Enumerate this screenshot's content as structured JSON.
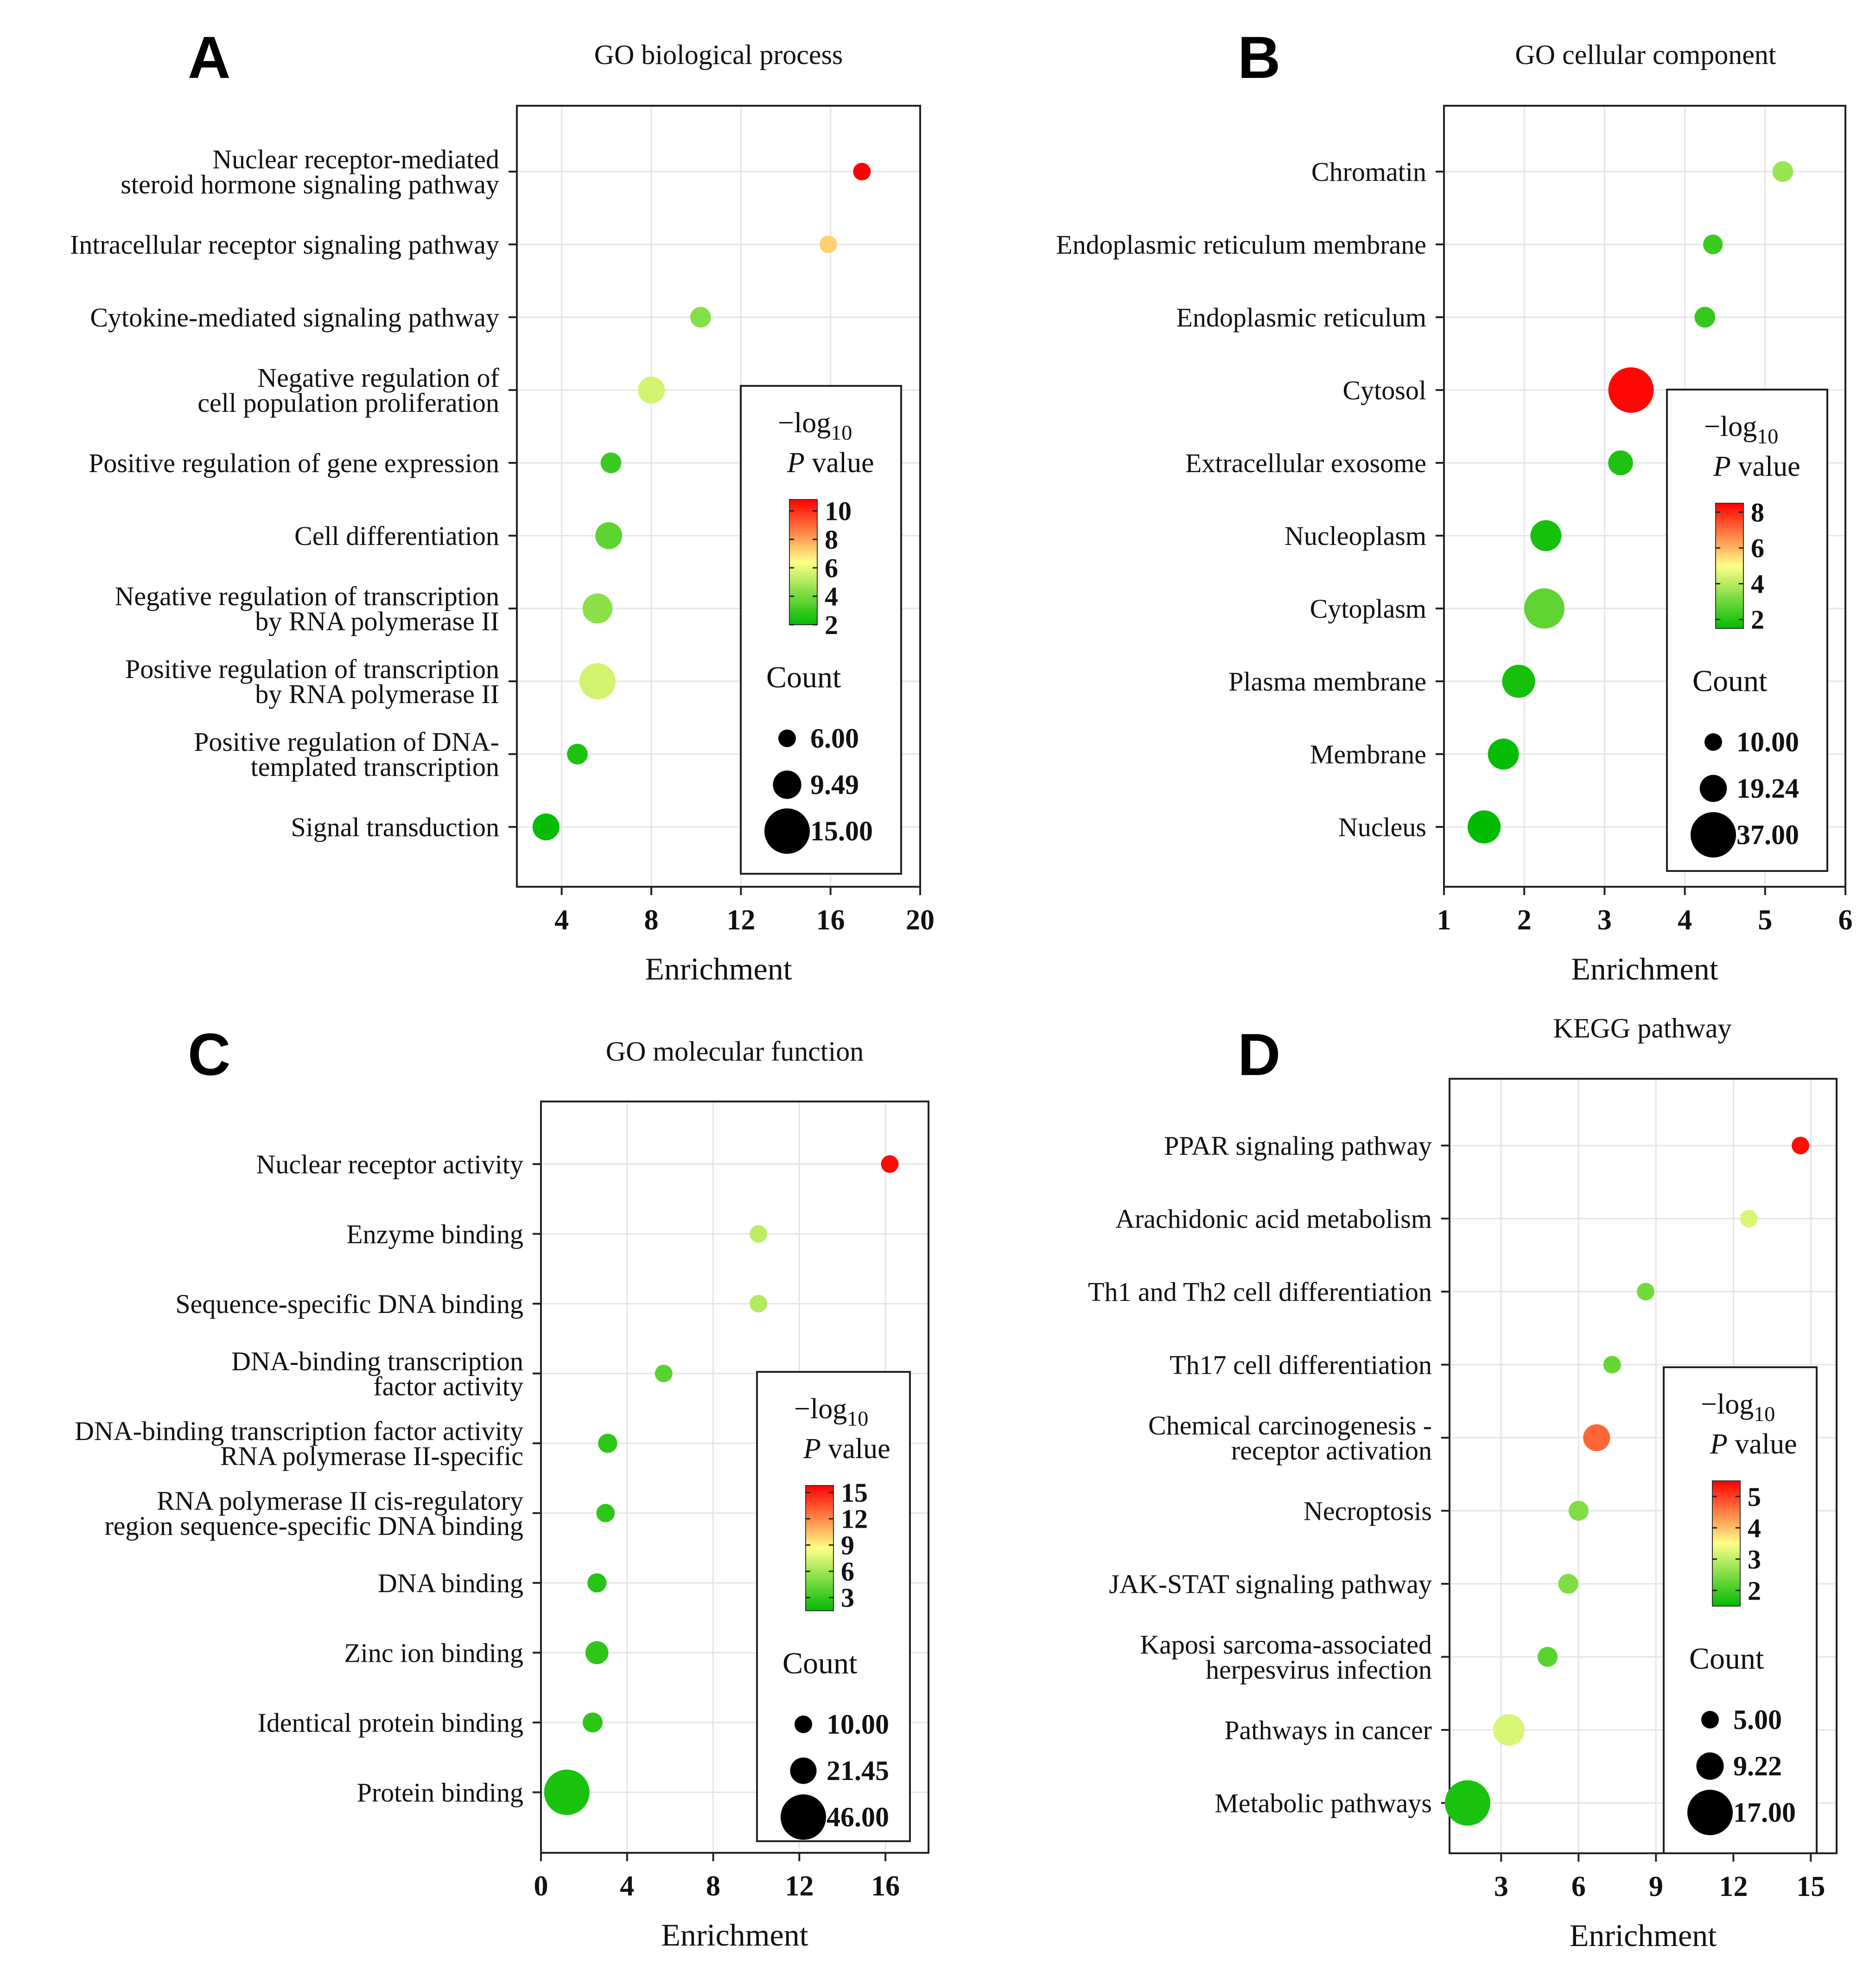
{
  "figure": {
    "colors": {
      "low": "#00bb00",
      "mid": "#ffff88",
      "high": "#ff0000",
      "axis": "#222222",
      "grid": "#e6e6e6"
    }
  },
  "chart_data": [
    {
      "panel_letter": "A",
      "type": "scatter",
      "title": "GO biological process",
      "xlabel": "Enrichment",
      "xlim": [
        2,
        20
      ],
      "xticks": [
        4,
        8,
        12,
        16,
        20
      ],
      "categories": [
        [
          "Nuclear receptor-mediated",
          "steroid hormone signaling pathway"
        ],
        [
          "Intracellular receptor signaling pathway"
        ],
        [
          "Cytokine-mediated signaling pathway"
        ],
        [
          "Negative regulation of",
          "cell population proliferation"
        ],
        [
          "Positive regulation of gene expression"
        ],
        [
          "Cell differentiation"
        ],
        [
          "Negative regulation of transcription",
          "by RNA polymerase II"
        ],
        [
          "Positive regulation of transcription",
          "by RNA polymerase II"
        ],
        [
          "Positive regulation of DNA-",
          "templated transcription"
        ],
        [
          "Signal transduction"
        ]
      ],
      "points": [
        {
          "enrichment": 17.4,
          "neglog10p": 10.8,
          "count": 6
        },
        {
          "enrichment": 15.9,
          "neglog10p": 7.2,
          "count": 6
        },
        {
          "enrichment": 10.2,
          "neglog10p": 4.3,
          "count": 7
        },
        {
          "enrichment": 8.0,
          "neglog10p": 5.6,
          "count": 9
        },
        {
          "enrichment": 6.2,
          "neglog10p": 3.0,
          "count": 7
        },
        {
          "enrichment": 6.1,
          "neglog10p": 3.6,
          "count": 9
        },
        {
          "enrichment": 5.6,
          "neglog10p": 4.4,
          "count": 10
        },
        {
          "enrichment": 5.6,
          "neglog10p": 5.6,
          "count": 12
        },
        {
          "enrichment": 4.7,
          "neglog10p": 2.5,
          "count": 7
        },
        {
          "enrichment": 3.3,
          "neglog10p": 2.1,
          "count": 9
        }
      ],
      "color_legend": {
        "title_prefix": "−log",
        "title_sub": "10",
        "title_p": "P",
        "title_value": "value",
        "ticks": [
          "10",
          "8",
          "6",
          "4",
          "2"
        ],
        "range": [
          2,
          10.8
        ]
      },
      "size_legend": {
        "title": "Count",
        "labels": [
          "6.00",
          "9.49",
          "15.00"
        ],
        "values": [
          6,
          9.49,
          15
        ]
      }
    },
    {
      "panel_letter": "B",
      "type": "scatter",
      "title": "GO cellular component",
      "xlabel": "Enrichment",
      "xlim": [
        1,
        6
      ],
      "xticks": [
        1,
        2,
        3,
        4,
        5,
        6
      ],
      "categories": [
        [
          "Chromatin"
        ],
        [
          "Endoplasmic reticulum membrane"
        ],
        [
          "Endoplasmic reticulum"
        ],
        [
          "Cytosol"
        ],
        [
          "Extracellular exosome"
        ],
        [
          "Nucleoplasm"
        ],
        [
          "Cytoplasm"
        ],
        [
          "Plasma membrane"
        ],
        [
          "Membrane"
        ],
        [
          "Nucleus"
        ]
      ],
      "points": [
        {
          "enrichment": 5.22,
          "neglog10p": 3.6,
          "count": 13
        },
        {
          "enrichment": 4.35,
          "neglog10p": 2.3,
          "count": 12
        },
        {
          "enrichment": 4.25,
          "neglog10p": 2.2,
          "count": 13
        },
        {
          "enrichment": 3.33,
          "neglog10p": 8.4,
          "count": 37
        },
        {
          "enrichment": 3.2,
          "neglog10p": 1.9,
          "count": 17
        },
        {
          "enrichment": 2.27,
          "neglog10p": 1.8,
          "count": 23
        },
        {
          "enrichment": 2.25,
          "neglog10p": 2.8,
          "count": 32
        },
        {
          "enrichment": 1.93,
          "neglog10p": 1.8,
          "count": 25
        },
        {
          "enrichment": 1.74,
          "neglog10p": 1.6,
          "count": 23
        },
        {
          "enrichment": 1.5,
          "neglog10p": 1.5,
          "count": 25
        }
      ],
      "color_legend": {
        "title_prefix": "−log",
        "title_sub": "10",
        "title_p": "P",
        "title_value": "value",
        "ticks": [
          "8",
          "6",
          "4",
          "2"
        ],
        "range": [
          1.5,
          8.5
        ]
      },
      "size_legend": {
        "title": "Count",
        "labels": [
          "10.00",
          "19.24",
          "37.00"
        ],
        "values": [
          10,
          19.24,
          37
        ]
      }
    },
    {
      "panel_letter": "C",
      "type": "scatter",
      "title": "GO molecular function",
      "xlabel": "Enrichment",
      "xlim": [
        0,
        18
      ],
      "xticks": [
        0,
        4,
        8,
        12,
        16
      ],
      "categories": [
        [
          "Nuclear receptor activity"
        ],
        [
          "Enzyme binding"
        ],
        [
          "Sequence-specific DNA binding"
        ],
        [
          "DNA-binding transcription",
          "factor activity"
        ],
        [
          "DNA-binding transcription factor activity",
          "RNA polymerase II-specific"
        ],
        [
          "RNA polymerase II cis-regulatory",
          "region sequence-specific DNA binding"
        ],
        [
          "DNA binding"
        ],
        [
          "Zinc ion binding"
        ],
        [
          "Identical protein binding"
        ],
        [
          "Protein binding"
        ]
      ],
      "points": [
        {
          "enrichment": 16.2,
          "neglog10p": 15.5,
          "count": 10
        },
        {
          "enrichment": 10.1,
          "neglog10p": 6.8,
          "count": 10
        },
        {
          "enrichment": 10.1,
          "neglog10p": 6.5,
          "count": 10
        },
        {
          "enrichment": 5.7,
          "neglog10p": 4.0,
          "count": 10
        },
        {
          "enrichment": 3.1,
          "neglog10p": 2.8,
          "count": 12
        },
        {
          "enrichment": 3.0,
          "neglog10p": 2.8,
          "count": 11
        },
        {
          "enrichment": 2.6,
          "neglog10p": 2.5,
          "count": 12
        },
        {
          "enrichment": 2.6,
          "neglog10p": 2.8,
          "count": 17
        },
        {
          "enrichment": 2.4,
          "neglog10p": 2.7,
          "count": 13
        },
        {
          "enrichment": 1.2,
          "neglog10p": 2.2,
          "count": 46
        }
      ],
      "color_legend": {
        "title_prefix": "−log",
        "title_sub": "10",
        "title_p": "P",
        "title_value": "value",
        "ticks": [
          "15",
          "12",
          "9",
          "6",
          "3"
        ],
        "range": [
          1.5,
          15.8
        ]
      },
      "size_legend": {
        "title": "Count",
        "labels": [
          "10.00",
          "21.45",
          "46.00"
        ],
        "values": [
          10,
          21.45,
          46
        ]
      }
    },
    {
      "panel_letter": "D",
      "type": "scatter",
      "title": "KEGG pathway",
      "xlabel": "Enrichment",
      "xlim": [
        1,
        16
      ],
      "xticks": [
        3,
        6,
        9,
        12,
        15
      ],
      "categories": [
        [
          "PPAR signaling pathway"
        ],
        [
          "Arachidonic acid metabolism"
        ],
        [
          "Th1 and Th2 cell differentiation"
        ],
        [
          "Th17 cell differentiation"
        ],
        [
          "Chemical carcinogenesis -",
          "receptor activation"
        ],
        [
          "Necroptosis"
        ],
        [
          "JAK-STAT signaling pathway"
        ],
        [
          "Kaposi sarcoma-associated",
          "herpesvirus infection"
        ],
        [
          "Pathways in cancer"
        ],
        [
          "Metabolic pathways"
        ]
      ],
      "points": [
        {
          "enrichment": 14.6,
          "neglog10p": 5.4,
          "count": 5
        },
        {
          "enrichment": 12.6,
          "neglog10p": 3.2,
          "count": 5
        },
        {
          "enrichment": 8.6,
          "neglog10p": 2.4,
          "count": 5
        },
        {
          "enrichment": 7.3,
          "neglog10p": 2.3,
          "count": 5
        },
        {
          "enrichment": 6.7,
          "neglog10p": 4.7,
          "count": 9
        },
        {
          "enrichment": 6.0,
          "neglog10p": 2.5,
          "count": 6
        },
        {
          "enrichment": 5.6,
          "neglog10p": 2.5,
          "count": 6
        },
        {
          "enrichment": 4.8,
          "neglog10p": 2.2,
          "count": 6
        },
        {
          "enrichment": 3.3,
          "neglog10p": 3.2,
          "count": 11
        },
        {
          "enrichment": 1.7,
          "neglog10p": 1.7,
          "count": 17
        }
      ],
      "color_legend": {
        "title_prefix": "−log",
        "title_sub": "10",
        "title_p": "P",
        "title_value": "value",
        "ticks": [
          "5",
          "4",
          "3",
          "2"
        ],
        "range": [
          1.5,
          5.5
        ]
      },
      "size_legend": {
        "title": "Count",
        "labels": [
          "5.00",
          "9.22",
          "17.00"
        ],
        "values": [
          5,
          9.22,
          17
        ]
      }
    }
  ]
}
